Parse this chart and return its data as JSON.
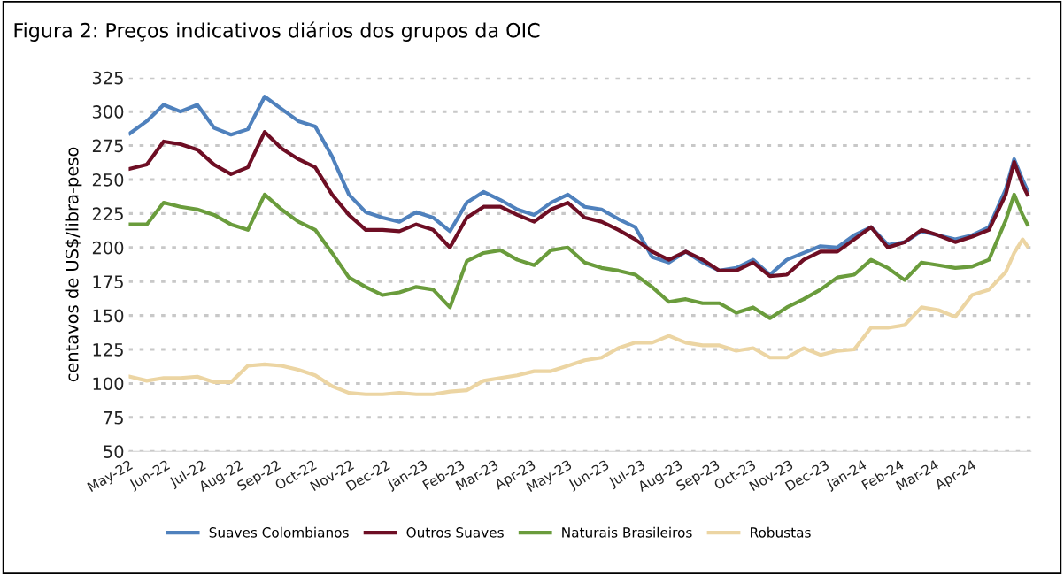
{
  "chart_data": {
    "type": "line",
    "title": "Figura 2: Preços indicativos diários dos grupos da OIC",
    "ylabel": "centavos de US$/libra-peso",
    "x": [
      "2022-05-02",
      "2022-05-16",
      "2022-05-30",
      "2022-06-13",
      "2022-06-27",
      "2022-07-11",
      "2022-07-25",
      "2022-08-08",
      "2022-08-22",
      "2022-09-05",
      "2022-09-19",
      "2022-10-03",
      "2022-10-17",
      "2022-10-31",
      "2022-11-14",
      "2022-11-28",
      "2022-12-12",
      "2022-12-26",
      "2023-01-09",
      "2023-01-23",
      "2023-02-06",
      "2023-02-20",
      "2023-03-06",
      "2023-03-20",
      "2023-04-03",
      "2023-04-17",
      "2023-05-01",
      "2023-05-15",
      "2023-05-29",
      "2023-06-12",
      "2023-06-26",
      "2023-07-10",
      "2023-07-24",
      "2023-08-07",
      "2023-08-21",
      "2023-09-04",
      "2023-09-18",
      "2023-10-02",
      "2023-10-16",
      "2023-10-30",
      "2023-11-13",
      "2023-11-27",
      "2023-12-11",
      "2023-12-25",
      "2024-01-08",
      "2024-01-22",
      "2024-02-05",
      "2024-02-19",
      "2024-03-04",
      "2024-03-18",
      "2024-04-01",
      "2024-04-15",
      "2024-04-29",
      "2024-05-06",
      "2024-05-13",
      "2024-05-17"
    ],
    "series": [
      {
        "name": "Suaves Colombianos",
        "color": "#4f81bd",
        "values": [
          284,
          293,
          305,
          300,
          305,
          288,
          283,
          287,
          311,
          302,
          293,
          289,
          267,
          239,
          226,
          222,
          219,
          226,
          222,
          212,
          233,
          241,
          235,
          228,
          224,
          233,
          239,
          230,
          228,
          221,
          215,
          193,
          189,
          197,
          189,
          183,
          185,
          191,
          180,
          191,
          196,
          201,
          200,
          209,
          215,
          202,
          204,
          212,
          209,
          206,
          209,
          215,
          243,
          265,
          250,
          242
        ]
      },
      {
        "name": "Outros Suaves",
        "color": "#6e0e24",
        "values": [
          258,
          261,
          278,
          276,
          272,
          261,
          254,
          259,
          285,
          273,
          265,
          259,
          239,
          224,
          213,
          213,
          212,
          217,
          213,
          200,
          222,
          230,
          230,
          224,
          219,
          228,
          233,
          222,
          219,
          213,
          206,
          197,
          191,
          197,
          191,
          183,
          183,
          189,
          179,
          180,
          191,
          197,
          197,
          206,
          215,
          200,
          204,
          213,
          209,
          204,
          208,
          213,
          239,
          263,
          246,
          239
        ]
      },
      {
        "name": "Naturais Brasileiros",
        "color": "#6a9c3c",
        "values": [
          217,
          217,
          233,
          230,
          228,
          224,
          217,
          213,
          239,
          228,
          219,
          213,
          196,
          178,
          171,
          165,
          167,
          171,
          169,
          156,
          190,
          196,
          198,
          191,
          187,
          198,
          200,
          189,
          185,
          183,
          180,
          171,
          160,
          162,
          159,
          159,
          152,
          156,
          148,
          156,
          162,
          169,
          178,
          180,
          191,
          185,
          176,
          189,
          187,
          185,
          186,
          191,
          220,
          239,
          224,
          217
        ]
      },
      {
        "name": "Robustas",
        "color": "#ecd5a3",
        "values": [
          105,
          102,
          104,
          104,
          105,
          101,
          101,
          113,
          114,
          113,
          110,
          106,
          98,
          93,
          92,
          92,
          93,
          92,
          92,
          94,
          95,
          102,
          104,
          106,
          109,
          109,
          113,
          117,
          119,
          126,
          130,
          130,
          135,
          130,
          128,
          128,
          124,
          126,
          119,
          119,
          126,
          121,
          124,
          125,
          141,
          141,
          143,
          156,
          154,
          149,
          165,
          169,
          182,
          196,
          206,
          201
        ]
      }
    ],
    "xlim": [
      "2022-05-01",
      "2024-05-20"
    ],
    "xticks": [
      {
        "value": "2022-05-01",
        "label": "May-22"
      },
      {
        "value": "2022-06-01",
        "label": "Jun-22"
      },
      {
        "value": "2022-07-01",
        "label": "Jul-22"
      },
      {
        "value": "2022-08-01",
        "label": "Aug-22"
      },
      {
        "value": "2022-09-01",
        "label": "Sep-22"
      },
      {
        "value": "2022-10-01",
        "label": "Oct-22"
      },
      {
        "value": "2022-11-01",
        "label": "Nov-22"
      },
      {
        "value": "2022-12-01",
        "label": "Dec-22"
      },
      {
        "value": "2023-01-01",
        "label": "Jan-23"
      },
      {
        "value": "2023-02-01",
        "label": "Feb-23"
      },
      {
        "value": "2023-03-01",
        "label": "Mar-23"
      },
      {
        "value": "2023-04-01",
        "label": "Apr-23"
      },
      {
        "value": "2023-05-01",
        "label": "May-23"
      },
      {
        "value": "2023-06-01",
        "label": "Jun-23"
      },
      {
        "value": "2023-07-01",
        "label": "Jul-23"
      },
      {
        "value": "2023-08-01",
        "label": "Aug-23"
      },
      {
        "value": "2023-09-01",
        "label": "Sep-23"
      },
      {
        "value": "2023-10-01",
        "label": "Oct-23"
      },
      {
        "value": "2023-11-01",
        "label": "Nov-23"
      },
      {
        "value": "2023-12-01",
        "label": "Dec-23"
      },
      {
        "value": "2024-01-01",
        "label": "Jan-24"
      },
      {
        "value": "2024-02-01",
        "label": "Feb-24"
      },
      {
        "value": "2024-03-01",
        "label": "Mar-24"
      },
      {
        "value": "2024-04-01",
        "label": "Apr-24"
      }
    ],
    "ylim": [
      50,
      325
    ],
    "yticks": [
      50,
      75,
      100,
      125,
      150,
      175,
      200,
      225,
      250,
      275,
      300,
      325
    ],
    "grid": "y",
    "legend": "bottom",
    "marker": "none",
    "line_style": "solid"
  }
}
